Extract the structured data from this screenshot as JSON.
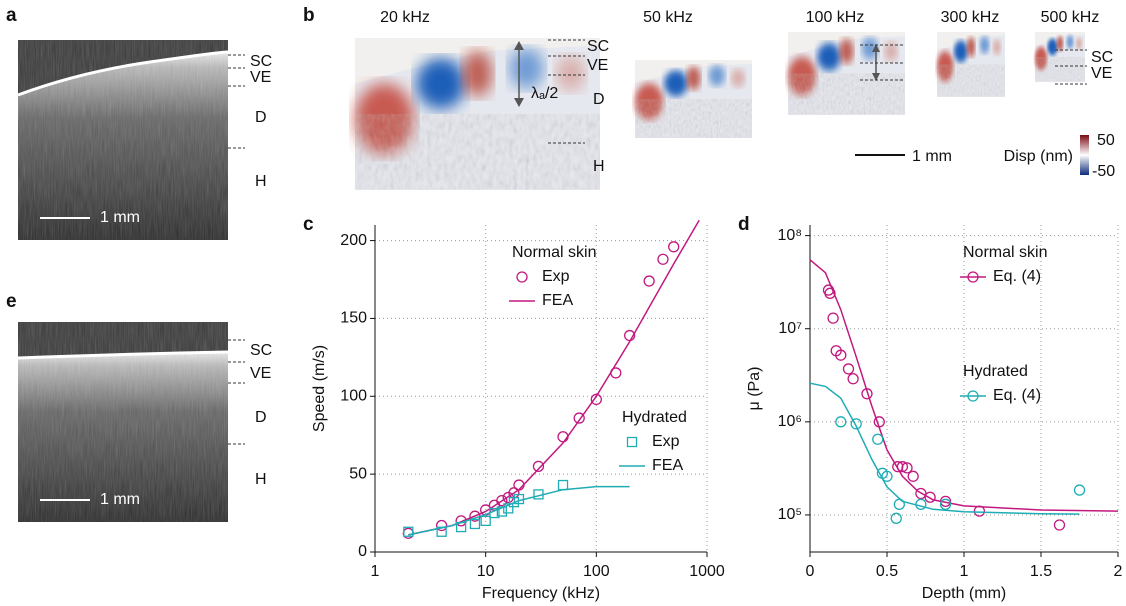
{
  "figure": {
    "panel_labels": [
      "a",
      "b",
      "c",
      "d",
      "e"
    ],
    "a": {
      "layers": [
        "SC",
        "VE",
        "D",
        "H"
      ],
      "scale": "1 mm"
    },
    "e": {
      "layers": [
        "SC",
        "VE",
        "D",
        "H"
      ],
      "scale": "1 mm"
    },
    "b": {
      "frequencies": [
        "20 kHz",
        "50 kHz",
        "100 kHz",
        "300 kHz",
        "500 kHz"
      ],
      "layers": [
        "SC",
        "VE",
        "D",
        "H"
      ],
      "small_layers": [
        "SC",
        "VE"
      ],
      "wavelength": "λₐ/2",
      "scale": "1 mm",
      "colorbar": {
        "label": "Disp (nm)",
        "max": 50,
        "min": -50
      }
    }
  },
  "chart_data": [
    {
      "type": "line",
      "xlabel": "Frequency (kHz)",
      "ylabel": "Speed (m/s)",
      "xscale": "log",
      "xlim": [
        1,
        1000
      ],
      "ylim": [
        0,
        210
      ],
      "xticks": [
        1,
        10,
        100,
        1000
      ],
      "yticks": [
        0,
        50,
        100,
        150,
        200
      ],
      "grid": true,
      "groups": [
        {
          "name": "Normal skin",
          "color": "#c2187f",
          "series": [
            {
              "name": "Exp",
              "marker": "circle",
              "x": [
                2,
                4,
                6,
                8,
                10,
                12,
                14,
                16,
                18,
                20,
                30,
                50,
                70,
                100,
                150,
                200,
                300,
                400,
                500
              ],
              "values": [
                12,
                17,
                20,
                23,
                27,
                30,
                33,
                35,
                38,
                43,
                55,
                74,
                86,
                98,
                115,
                139,
                174,
                188,
                196
              ]
            },
            {
              "name": "FEA",
              "marker": "none",
              "x": [
                2,
                5,
                10,
                20,
                50,
                100,
                200,
                500,
                850
              ],
              "values": [
                11,
                17,
                26,
                40,
                70,
                100,
                135,
                185,
                213
              ]
            }
          ]
        },
        {
          "name": "Hydrated",
          "color": "#1eadb5",
          "series": [
            {
              "name": "Exp",
              "marker": "square",
              "x": [
                2,
                4,
                6,
                8,
                10,
                12,
                14,
                16,
                18,
                20,
                30,
                50
              ],
              "values": [
                13,
                13,
                16,
                18,
                20,
                25,
                26,
                28,
                32,
                34,
                37,
                43
              ]
            },
            {
              "name": "FEA",
              "marker": "none",
              "x": [
                2,
                5,
                10,
                20,
                50,
                100,
                200
              ],
              "values": [
                11,
                17,
                24,
                33,
                40,
                42,
                42
              ]
            }
          ]
        }
      ]
    },
    {
      "type": "line",
      "xlabel": "Depth (mm)",
      "ylabel": "μ (Pa)",
      "yscale": "log",
      "xlim": [
        0,
        2
      ],
      "ylim": [
        40000,
        130000000
      ],
      "xticks": [
        0,
        0.5,
        1,
        1.5,
        2
      ],
      "yticks": [
        {
          "value": 100000,
          "label": "10⁵"
        },
        {
          "value": 1000000,
          "label": "10⁶"
        },
        {
          "value": 10000000,
          "label": "10⁷"
        },
        {
          "value": 100000000,
          "label": "10⁸"
        }
      ],
      "grid": true,
      "groups": [
        {
          "name": "Normal skin",
          "color": "#c2187f",
          "series": [
            {
              "name": "Eq. (4)",
              "marker": "circle",
              "x": [
                0.12,
                0.13,
                0.15,
                0.17,
                0.2,
                0.25,
                0.28,
                0.37,
                0.45,
                0.57,
                0.6,
                0.63,
                0.67,
                0.72,
                0.78,
                0.88,
                1.1,
                1.62
              ],
              "values": [
                26000000,
                24000000,
                13000000,
                5800000,
                5200000,
                3700000,
                2900000,
                2000000,
                1000000,
                330000,
                330000,
                320000,
                260000,
                170000,
                155000,
                140000,
                110000,
                78000
              ],
              "fit_x": [
                0,
                0.1,
                0.2,
                0.3,
                0.4,
                0.5,
                0.6,
                0.7,
                0.8,
                1,
                1.5,
                2
              ],
              "fit_values": [
                55000000,
                40000000,
                16000000,
                5000000,
                1500000,
                500000,
                260000,
                180000,
                145000,
                125000,
                113000,
                110000
              ]
            }
          ]
        },
        {
          "name": "Hydrated",
          "color": "#1eadb5",
          "series": [
            {
              "name": "Eq. (4)",
              "marker": "circle",
              "x": [
                0.2,
                0.3,
                0.44,
                0.47,
                0.5,
                0.56,
                0.58,
                0.72,
                0.88,
                1.75
              ],
              "values": [
                1000000,
                950000,
                650000,
                280000,
                260000,
                92000,
                130000,
                130000,
                130000,
                185000
              ],
              "fit_x": [
                0,
                0.1,
                0.2,
                0.3,
                0.4,
                0.5,
                0.6,
                0.8,
                1,
                1.5,
                1.75
              ],
              "fit_values": [
                2600000,
                2400000,
                1800000,
                900000,
                400000,
                200000,
                140000,
                115000,
                108000,
                103000,
                102000
              ]
            }
          ]
        }
      ]
    }
  ]
}
